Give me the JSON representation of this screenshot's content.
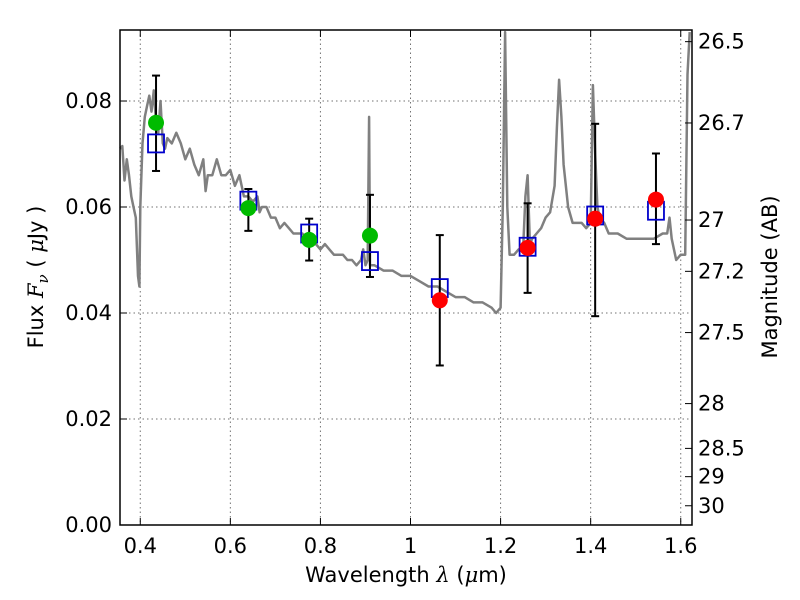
{
  "chart_data": {
    "type": "scatter",
    "xlabel": "Wavelength  λ (μm)",
    "ylabel": "Flux  F_ν  ( μJy )",
    "ylabel_parts": {
      "prefix": "Flux ",
      "var": "F",
      "sub": "ν",
      "unit_open": " ( ",
      "unit_mu": "μ",
      "unit_rest": "Jy )"
    },
    "xlabel_parts": {
      "prefix": "Wavelength  ",
      "var": "λ",
      "unit_open": " (",
      "unit_mu": "μ",
      "unit_rest": "m)"
    },
    "y2label": "Magnitude (AB)",
    "xlim": [
      0.355,
      1.625
    ],
    "ylim": [
      0.0,
      0.0934
    ],
    "xticks": [
      0.4,
      0.6,
      0.8,
      1.0,
      1.2,
      1.4,
      1.6
    ],
    "xtick_labels": [
      "0.4",
      "0.6",
      "0.8",
      "1",
      "1.2",
      "1.4",
      "1.6"
    ],
    "yticks": [
      0.0,
      0.02,
      0.04,
      0.06,
      0.08
    ],
    "ytick_labels": [
      "0.00",
      "0.02",
      "0.04",
      "0.06",
      "0.08"
    ],
    "mag_ticks": [
      26.5,
      26.7,
      27,
      27.2,
      27.5,
      28,
      28.5,
      29,
      30
    ],
    "mag_tick_labels": [
      "26.5",
      "26.7",
      "27",
      "27.2",
      "27.5",
      "28",
      "28.5",
      "29",
      "30"
    ],
    "grid": true,
    "colors": {
      "green": "#00bb00",
      "red": "#ff0000",
      "model_box": "#0000cc",
      "sed": "#808080",
      "errorbar": "#000000"
    },
    "observed_green": [
      {
        "x": 0.435,
        "y": 0.0759,
        "ylo": 0.0668,
        "yhi": 0.0848
      },
      {
        "x": 0.64,
        "y": 0.0598,
        "ylo": 0.0555,
        "yhi": 0.0634
      },
      {
        "x": 0.775,
        "y": 0.0538,
        "ylo": 0.0499,
        "yhi": 0.0578
      },
      {
        "x": 0.91,
        "y": 0.0546,
        "ylo": 0.0468,
        "yhi": 0.0623
      }
    ],
    "observed_red": [
      {
        "x": 1.065,
        "y": 0.0424,
        "ylo": 0.0301,
        "yhi": 0.0547
      },
      {
        "x": 1.26,
        "y": 0.0523,
        "ylo": 0.0438,
        "yhi": 0.0607
      },
      {
        "x": 1.41,
        "y": 0.0578,
        "ylo": 0.0394,
        "yhi": 0.0757
      },
      {
        "x": 1.545,
        "y": 0.0614,
        "ylo": 0.053,
        "yhi": 0.0701
      }
    ],
    "model_boxes": [
      {
        "x": 0.435,
        "y": 0.072
      },
      {
        "x": 0.64,
        "y": 0.0612
      },
      {
        "x": 0.775,
        "y": 0.055
      },
      {
        "x": 0.91,
        "y": 0.0498
      },
      {
        "x": 1.065,
        "y": 0.0447
      },
      {
        "x": 1.26,
        "y": 0.0525
      },
      {
        "x": 1.41,
        "y": 0.0584
      },
      {
        "x": 1.545,
        "y": 0.0593
      }
    ],
    "sed_curve": [
      [
        0.355,
        0.071
      ],
      [
        0.36,
        0.0715
      ],
      [
        0.365,
        0.065
      ],
      [
        0.37,
        0.069
      ],
      [
        0.375,
        0.066
      ],
      [
        0.38,
        0.062
      ],
      [
        0.385,
        0.06
      ],
      [
        0.39,
        0.058
      ],
      [
        0.395,
        0.047
      ],
      [
        0.398,
        0.045
      ],
      [
        0.4,
        0.06
      ],
      [
        0.405,
        0.072
      ],
      [
        0.41,
        0.077
      ],
      [
        0.415,
        0.079
      ],
      [
        0.42,
        0.081
      ],
      [
        0.425,
        0.078
      ],
      [
        0.43,
        0.082
      ],
      [
        0.435,
        0.076
      ],
      [
        0.44,
        0.074
      ],
      [
        0.445,
        0.08
      ],
      [
        0.45,
        0.072
      ],
      [
        0.455,
        0.071
      ],
      [
        0.46,
        0.073
      ],
      [
        0.47,
        0.072
      ],
      [
        0.48,
        0.074
      ],
      [
        0.49,
        0.072
      ],
      [
        0.5,
        0.069
      ],
      [
        0.51,
        0.071
      ],
      [
        0.52,
        0.068
      ],
      [
        0.53,
        0.066
      ],
      [
        0.54,
        0.069
      ],
      [
        0.545,
        0.063
      ],
      [
        0.55,
        0.066
      ],
      [
        0.56,
        0.066
      ],
      [
        0.57,
        0.069
      ],
      [
        0.58,
        0.066
      ],
      [
        0.59,
        0.066
      ],
      [
        0.6,
        0.067
      ],
      [
        0.61,
        0.064
      ],
      [
        0.62,
        0.066
      ],
      [
        0.63,
        0.062
      ],
      [
        0.64,
        0.062
      ],
      [
        0.65,
        0.061
      ],
      [
        0.66,
        0.062
      ],
      [
        0.665,
        0.059
      ],
      [
        0.67,
        0.06
      ],
      [
        0.68,
        0.06
      ],
      [
        0.69,
        0.058
      ],
      [
        0.7,
        0.058
      ],
      [
        0.71,
        0.056
      ],
      [
        0.72,
        0.057
      ],
      [
        0.73,
        0.056
      ],
      [
        0.74,
        0.055
      ],
      [
        0.75,
        0.055
      ],
      [
        0.76,
        0.055
      ],
      [
        0.77,
        0.054
      ],
      [
        0.78,
        0.053
      ],
      [
        0.79,
        0.053
      ],
      [
        0.8,
        0.052
      ],
      [
        0.81,
        0.053
      ],
      [
        0.82,
        0.052
      ],
      [
        0.83,
        0.051
      ],
      [
        0.84,
        0.051
      ],
      [
        0.85,
        0.051
      ],
      [
        0.86,
        0.05
      ],
      [
        0.87,
        0.05
      ],
      [
        0.88,
        0.049
      ],
      [
        0.89,
        0.05
      ],
      [
        0.895,
        0.052
      ],
      [
        0.9,
        0.049
      ],
      [
        0.905,
        0.05
      ],
      [
        0.908,
        0.077
      ],
      [
        0.91,
        0.049
      ],
      [
        0.92,
        0.049
      ],
      [
        0.94,
        0.048
      ],
      [
        0.96,
        0.048
      ],
      [
        0.98,
        0.047
      ],
      [
        1.0,
        0.047
      ],
      [
        1.02,
        0.046
      ],
      [
        1.04,
        0.045
      ],
      [
        1.06,
        0.045
      ],
      [
        1.08,
        0.044
      ],
      [
        1.1,
        0.043
      ],
      [
        1.12,
        0.043
      ],
      [
        1.14,
        0.042
      ],
      [
        1.16,
        0.042
      ],
      [
        1.18,
        0.041
      ],
      [
        1.19,
        0.04
      ],
      [
        1.2,
        0.041
      ],
      [
        1.205,
        0.06
      ],
      [
        1.21,
        0.093
      ],
      [
        1.215,
        0.06
      ],
      [
        1.22,
        0.051
      ],
      [
        1.23,
        0.051
      ],
      [
        1.24,
        0.052
      ],
      [
        1.25,
        0.052
      ],
      [
        1.255,
        0.062
      ],
      [
        1.26,
        0.066
      ],
      [
        1.265,
        0.053
      ],
      [
        1.27,
        0.054
      ],
      [
        1.28,
        0.055
      ],
      [
        1.29,
        0.056
      ],
      [
        1.3,
        0.058
      ],
      [
        1.31,
        0.059
      ],
      [
        1.32,
        0.064
      ],
      [
        1.325,
        0.075
      ],
      [
        1.33,
        0.084
      ],
      [
        1.335,
        0.077
      ],
      [
        1.34,
        0.068
      ],
      [
        1.35,
        0.06
      ],
      [
        1.36,
        0.057
      ],
      [
        1.37,
        0.057
      ],
      [
        1.38,
        0.057
      ],
      [
        1.39,
        0.056
      ],
      [
        1.4,
        0.057
      ],
      [
        1.405,
        0.083
      ],
      [
        1.41,
        0.07
      ],
      [
        1.415,
        0.06
      ],
      [
        1.42,
        0.058
      ],
      [
        1.43,
        0.057
      ],
      [
        1.44,
        0.055
      ],
      [
        1.46,
        0.055
      ],
      [
        1.48,
        0.054
      ],
      [
        1.5,
        0.054
      ],
      [
        1.52,
        0.054
      ],
      [
        1.54,
        0.054
      ],
      [
        1.56,
        0.055
      ],
      [
        1.57,
        0.055
      ],
      [
        1.575,
        0.058
      ],
      [
        1.58,
        0.054
      ],
      [
        1.59,
        0.05
      ],
      [
        1.6,
        0.051
      ],
      [
        1.61,
        0.051
      ],
      [
        1.615,
        0.085
      ],
      [
        1.62,
        0.093
      ]
    ]
  }
}
